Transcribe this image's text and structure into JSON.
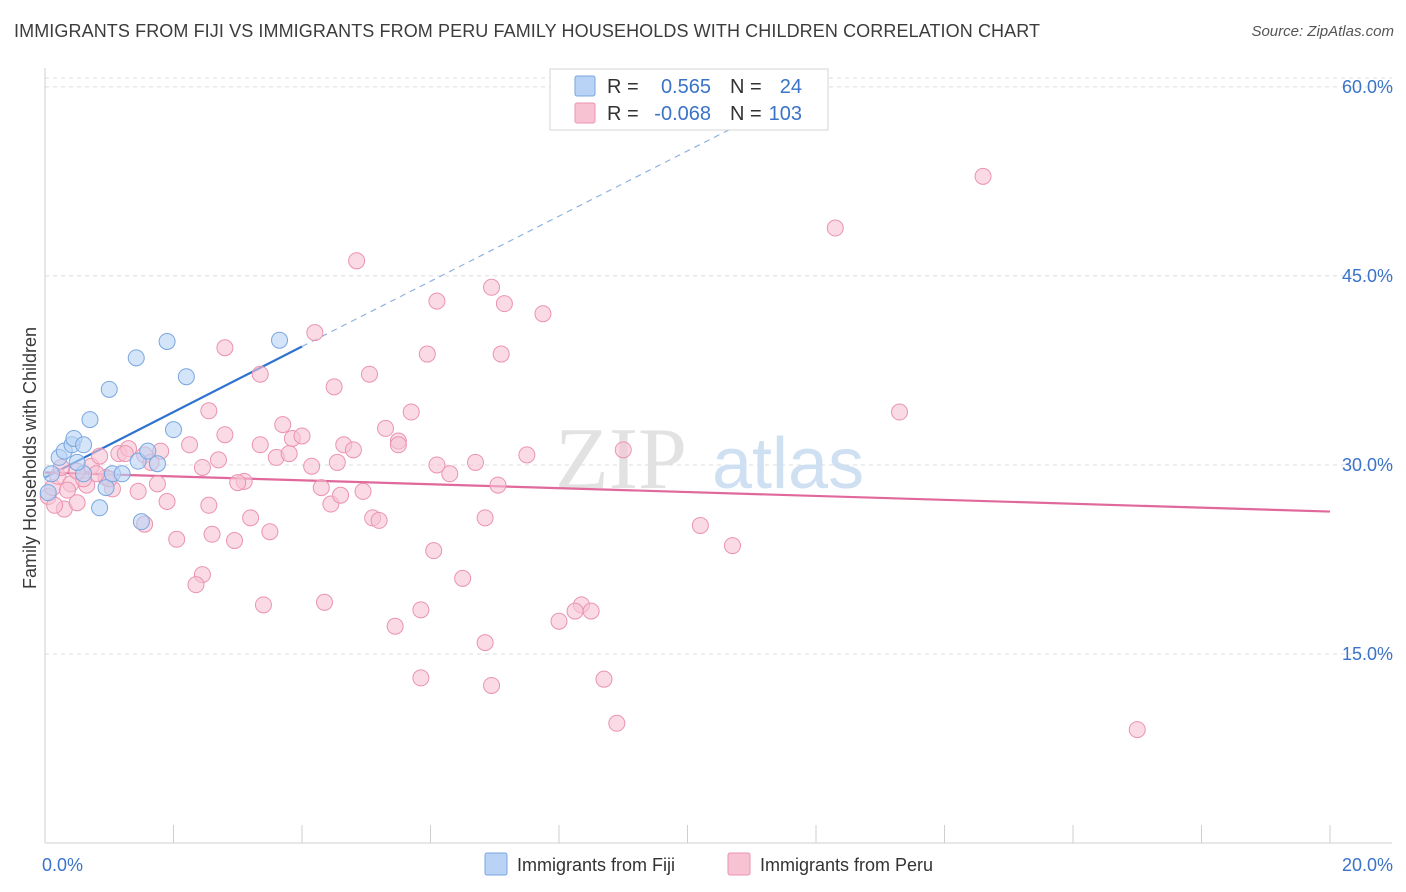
{
  "title": "IMMIGRANTS FROM FIJI VS IMMIGRANTS FROM PERU FAMILY HOUSEHOLDS WITH CHILDREN CORRELATION CHART",
  "source": "Source: ZipAtlas.com",
  "watermark": {
    "zip": "ZIP",
    "atlas": "atlas"
  },
  "stats": [
    {
      "r_label": "R =",
      "r_value": "0.565",
      "n_label": "N =",
      "n_value": "24"
    },
    {
      "r_label": "R =",
      "r_value": "-0.068",
      "n_label": "N =",
      "n_value": "103"
    }
  ],
  "colors": {
    "fiji_fill": "#b8d3f5",
    "fiji_stroke": "#7aa6e0",
    "fiji_line": "#2f72d0",
    "peru_fill": "#f7c3d3",
    "peru_stroke": "#eb93b0",
    "peru_line": "#e0689a",
    "grid": "#dcdcdc",
    "tick_label": "#3a73c9"
  },
  "chart_data": {
    "type": "scatter",
    "title": "IMMIGRANTS FROM FIJI VS IMMIGRANTS FROM PERU FAMILY HOUSEHOLDS WITH CHILDREN CORRELATION CHART",
    "xlabel": "",
    "ylabel": "Family Households with Children",
    "xlim": [
      0,
      20
    ],
    "ylim": [
      0,
      61.5
    ],
    "x_tick_labels": [
      "0.0%",
      "20.0%"
    ],
    "y_ticks": [
      15,
      30,
      45,
      60
    ],
    "y_tick_labels": [
      "15.0%",
      "30.0%",
      "45.0%",
      "60.0%"
    ],
    "grid": true,
    "legend_position": "bottom-center",
    "series": [
      {
        "name": "Immigrants from Fiji",
        "points": [
          [
            0.05,
            27.8
          ],
          [
            0.1,
            29.3
          ],
          [
            0.22,
            30.6
          ],
          [
            0.3,
            31.1
          ],
          [
            0.42,
            31.6
          ],
          [
            0.45,
            32.1
          ],
          [
            0.6,
            29.3
          ],
          [
            0.7,
            33.6
          ],
          [
            0.85,
            26.6
          ],
          [
            0.95,
            28.2
          ],
          [
            1.05,
            29.3
          ],
          [
            1.2,
            29.3
          ],
          [
            1.45,
            30.3
          ],
          [
            1.6,
            31.1
          ],
          [
            0.6,
            31.6
          ],
          [
            1.0,
            36.0
          ],
          [
            1.42,
            38.5
          ],
          [
            1.9,
            39.8
          ],
          [
            2.2,
            37.0
          ],
          [
            2.0,
            32.8
          ],
          [
            1.75,
            30.1
          ],
          [
            1.5,
            25.5
          ],
          [
            0.5,
            30.2
          ],
          [
            3.65,
            39.9
          ]
        ],
        "trend": {
          "x": [
            0.0,
            4.0
          ],
          "y": [
            29.0,
            39.4
          ]
        },
        "trend_extension": {
          "x": [
            4.0,
            11.5
          ],
          "y": [
            39.4,
            58.8
          ]
        }
      },
      {
        "name": "Immigrants from Peru",
        "points": [
          [
            0.05,
            27.5
          ],
          [
            0.12,
            28.2
          ],
          [
            0.2,
            29.1
          ],
          [
            0.3,
            26.5
          ],
          [
            0.4,
            28.5
          ],
          [
            0.5,
            27.0
          ],
          [
            0.65,
            28.4
          ],
          [
            0.72,
            29.9
          ],
          [
            0.85,
            30.7
          ],
          [
            0.95,
            29.0
          ],
          [
            1.05,
            28.1
          ],
          [
            1.15,
            30.9
          ],
          [
            1.3,
            31.3
          ],
          [
            1.45,
            27.9
          ],
          [
            1.55,
            30.8
          ],
          [
            1.65,
            30.2
          ],
          [
            1.8,
            31.1
          ],
          [
            1.9,
            27.1
          ],
          [
            2.05,
            24.1
          ],
          [
            2.25,
            31.6
          ],
          [
            2.45,
            29.8
          ],
          [
            2.55,
            26.8
          ],
          [
            2.6,
            24.5
          ],
          [
            2.7,
            30.4
          ],
          [
            2.8,
            32.4
          ],
          [
            2.95,
            24.0
          ],
          [
            3.1,
            28.7
          ],
          [
            3.2,
            25.8
          ],
          [
            3.35,
            31.6
          ],
          [
            3.5,
            24.7
          ],
          [
            3.6,
            30.6
          ],
          [
            3.7,
            33.2
          ],
          [
            3.85,
            32.1
          ],
          [
            4.0,
            32.3
          ],
          [
            4.15,
            29.9
          ],
          [
            4.3,
            28.2
          ],
          [
            4.45,
            26.9
          ],
          [
            4.55,
            30.2
          ],
          [
            4.65,
            31.6
          ],
          [
            4.8,
            31.2
          ],
          [
            4.95,
            27.9
          ],
          [
            5.1,
            25.8
          ],
          [
            5.3,
            32.9
          ],
          [
            5.5,
            31.9
          ],
          [
            5.7,
            34.2
          ],
          [
            5.95,
            38.8
          ],
          [
            6.05,
            23.2
          ],
          [
            6.3,
            29.3
          ],
          [
            6.5,
            21.0
          ],
          [
            6.7,
            30.2
          ],
          [
            6.95,
            44.1
          ],
          [
            7.15,
            42.8
          ],
          [
            7.5,
            30.8
          ],
          [
            7.75,
            42.0
          ],
          [
            8.35,
            18.9
          ],
          [
            8.5,
            18.4
          ],
          [
            9.0,
            31.2
          ],
          [
            10.2,
            25.2
          ],
          [
            10.7,
            23.6
          ],
          [
            12.3,
            48.8
          ],
          [
            13.3,
            34.2
          ],
          [
            14.6,
            52.9
          ],
          [
            17.0,
            9.0
          ],
          [
            2.45,
            21.3
          ],
          [
            2.35,
            20.5
          ],
          [
            3.4,
            18.9
          ],
          [
            4.35,
            19.1
          ],
          [
            5.45,
            17.2
          ],
          [
            5.85,
            18.5
          ],
          [
            6.85,
            15.9
          ],
          [
            6.95,
            12.5
          ],
          [
            8.0,
            17.6
          ],
          [
            8.25,
            18.4
          ],
          [
            8.7,
            13.0
          ],
          [
            8.9,
            9.5
          ],
          [
            5.85,
            13.1
          ],
          [
            7.05,
            28.4
          ],
          [
            4.5,
            36.2
          ],
          [
            4.85,
            46.2
          ],
          [
            5.05,
            37.2
          ],
          [
            6.1,
            43.0
          ],
          [
            7.1,
            38.8
          ],
          [
            5.2,
            25.6
          ],
          [
            6.85,
            25.8
          ],
          [
            4.2,
            40.5
          ],
          [
            3.35,
            37.2
          ],
          [
            2.8,
            39.3
          ],
          [
            2.55,
            34.3
          ],
          [
            1.75,
            28.5
          ],
          [
            1.55,
            25.3
          ],
          [
            1.25,
            30.9
          ],
          [
            1.0,
            28.9
          ],
          [
            0.8,
            29.3
          ],
          [
            0.6,
            28.9
          ],
          [
            0.35,
            28.0
          ],
          [
            0.15,
            26.8
          ],
          [
            0.25,
            29.8
          ],
          [
            0.5,
            29.5
          ],
          [
            3.0,
            28.6
          ],
          [
            3.8,
            30.9
          ],
          [
            5.5,
            31.6
          ],
          [
            6.1,
            30.0
          ],
          [
            4.6,
            27.6
          ]
        ],
        "trend": {
          "x": [
            0.0,
            20.0
          ],
          "y": [
            29.4,
            26.3
          ]
        }
      }
    ]
  }
}
